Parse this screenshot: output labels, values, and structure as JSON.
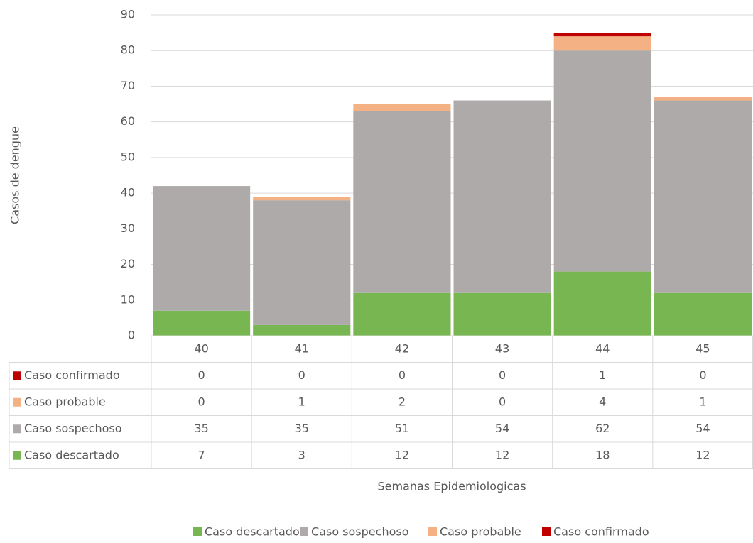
{
  "chart_data": {
    "type": "stacked_bar",
    "x_label": "Semanas Epidemiologicas",
    "y_label": "Casos de dengue",
    "categories": [
      "40",
      "41",
      "42",
      "43",
      "44",
      "45"
    ],
    "series": [
      {
        "name": "Caso descartado",
        "color": "#78b651",
        "values": [
          7,
          3,
          12,
          12,
          18,
          12
        ]
      },
      {
        "name": "Caso sospechoso",
        "color": "#aeaaaa",
        "values": [
          35,
          35,
          51,
          54,
          62,
          54
        ]
      },
      {
        "name": "Caso probable",
        "color": "#f4b183",
        "values": [
          0,
          1,
          2,
          0,
          4,
          1
        ]
      },
      {
        "name": "Caso confirmado",
        "color": "#c00000",
        "values": [
          0,
          0,
          0,
          0,
          1,
          0
        ]
      }
    ],
    "ylim": [
      0,
      90
    ],
    "yticks": [
      0,
      10,
      20,
      30,
      40,
      50,
      60,
      70,
      80,
      90
    ],
    "grid": true,
    "data_table": true,
    "legend": "bottom"
  }
}
